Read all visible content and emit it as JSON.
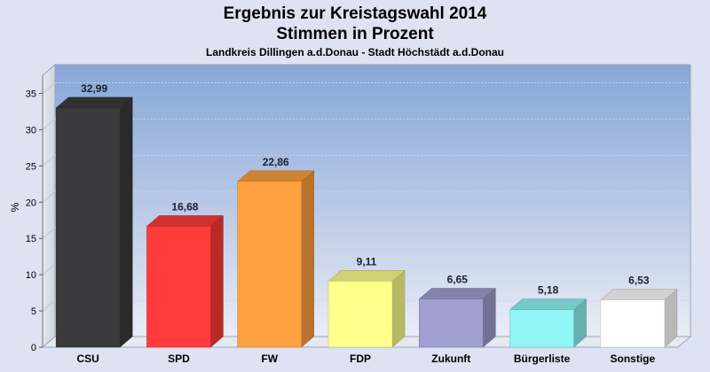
{
  "chart_data": {
    "type": "bar",
    "title": "Ergebnis zur Kreistagswahl 2014",
    "subtitle": "Stimmen in Prozent",
    "description": "Landkreis Dillingen a.d.Donau - Stadt Höchstädt a.d.Donau",
    "xlabel": "",
    "ylabel": "%",
    "ylim": [
      0,
      37.5
    ],
    "yticks": [
      0,
      5,
      10,
      15,
      20,
      25,
      30,
      35
    ],
    "categories": [
      "CSU",
      "SPD",
      "FW",
      "FDP",
      "Zukunft",
      "Bürgerliste",
      "Sonstige"
    ],
    "values": [
      32.99,
      16.68,
      22.86,
      9.11,
      6.65,
      5.18,
      6.53
    ],
    "value_labels": [
      "32,99",
      "16,68",
      "22,86",
      "9,11",
      "6,65",
      "5,18",
      "6,53"
    ],
    "colors": [
      "#3a3a3c",
      "#ff3b3b",
      "#ffa040",
      "#ffff8c",
      "#9f9fd0",
      "#8ff5f5",
      "#ffffff"
    ],
    "grid": true,
    "legend": "none"
  }
}
